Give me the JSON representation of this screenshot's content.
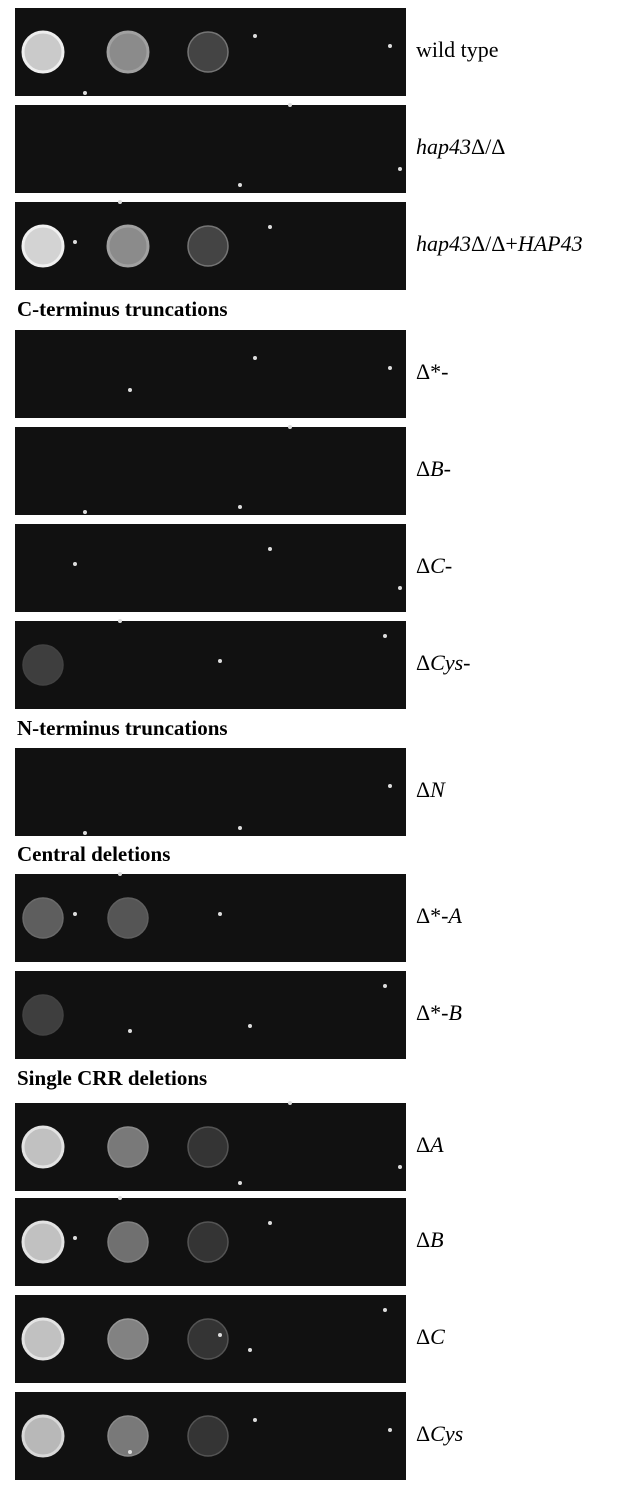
{
  "items": [
    {
      "label": [
        {
          "text": "wild type",
          "italic": false
        }
      ]
    },
    {
      "label": [
        {
          "text": "hap43",
          "italic": true
        },
        {
          "text": "Δ/Δ",
          "italic": false
        }
      ]
    },
    {
      "label": [
        {
          "text": "hap43",
          "italic": true
        },
        {
          "text": "Δ/Δ+",
          "italic": false
        },
        {
          "text": "HAP43",
          "italic": true
        }
      ]
    },
    {
      "heading": "C-terminus truncations"
    },
    {
      "label": [
        {
          "text": "Δ*-",
          "italic": false
        }
      ]
    },
    {
      "label": [
        {
          "text": "Δ",
          "italic": false
        },
        {
          "text": "B",
          "italic": true
        },
        {
          "text": "-",
          "italic": false
        }
      ]
    },
    {
      "label": [
        {
          "text": "Δ",
          "italic": false
        },
        {
          "text": "C",
          "italic": true
        },
        {
          "text": "-",
          "italic": false
        }
      ]
    },
    {
      "label": [
        {
          "text": "Δ",
          "italic": false
        },
        {
          "text": "Cys",
          "italic": true
        },
        {
          "text": "-",
          "italic": false
        }
      ]
    },
    {
      "heading": "N-terminus truncations"
    },
    {
      "label": [
        {
          "text": "Δ",
          "italic": false
        },
        {
          "text": "N",
          "italic": true
        }
      ]
    },
    {
      "heading": "Central deletions"
    },
    {
      "label": [
        {
          "text": "Δ*-",
          "italic": false
        },
        {
          "text": "A",
          "italic": true
        }
      ]
    },
    {
      "label": [
        {
          "text": "Δ*-",
          "italic": false
        },
        {
          "text": "B",
          "italic": true
        }
      ]
    },
    {
      "heading": "Single CRR deletions"
    },
    {
      "label": [
        {
          "text": "Δ",
          "italic": false
        },
        {
          "text": "A",
          "italic": true
        }
      ]
    },
    {
      "label": [
        {
          "text": "Δ",
          "italic": false
        },
        {
          "text": "B",
          "italic": true
        }
      ]
    },
    {
      "label": [
        {
          "text": "Δ",
          "italic": false
        },
        {
          "text": "C",
          "italic": true
        }
      ]
    },
    {
      "label": [
        {
          "text": "Δ",
          "italic": false
        },
        {
          "text": "Cys",
          "italic": true
        }
      ]
    }
  ]
}
